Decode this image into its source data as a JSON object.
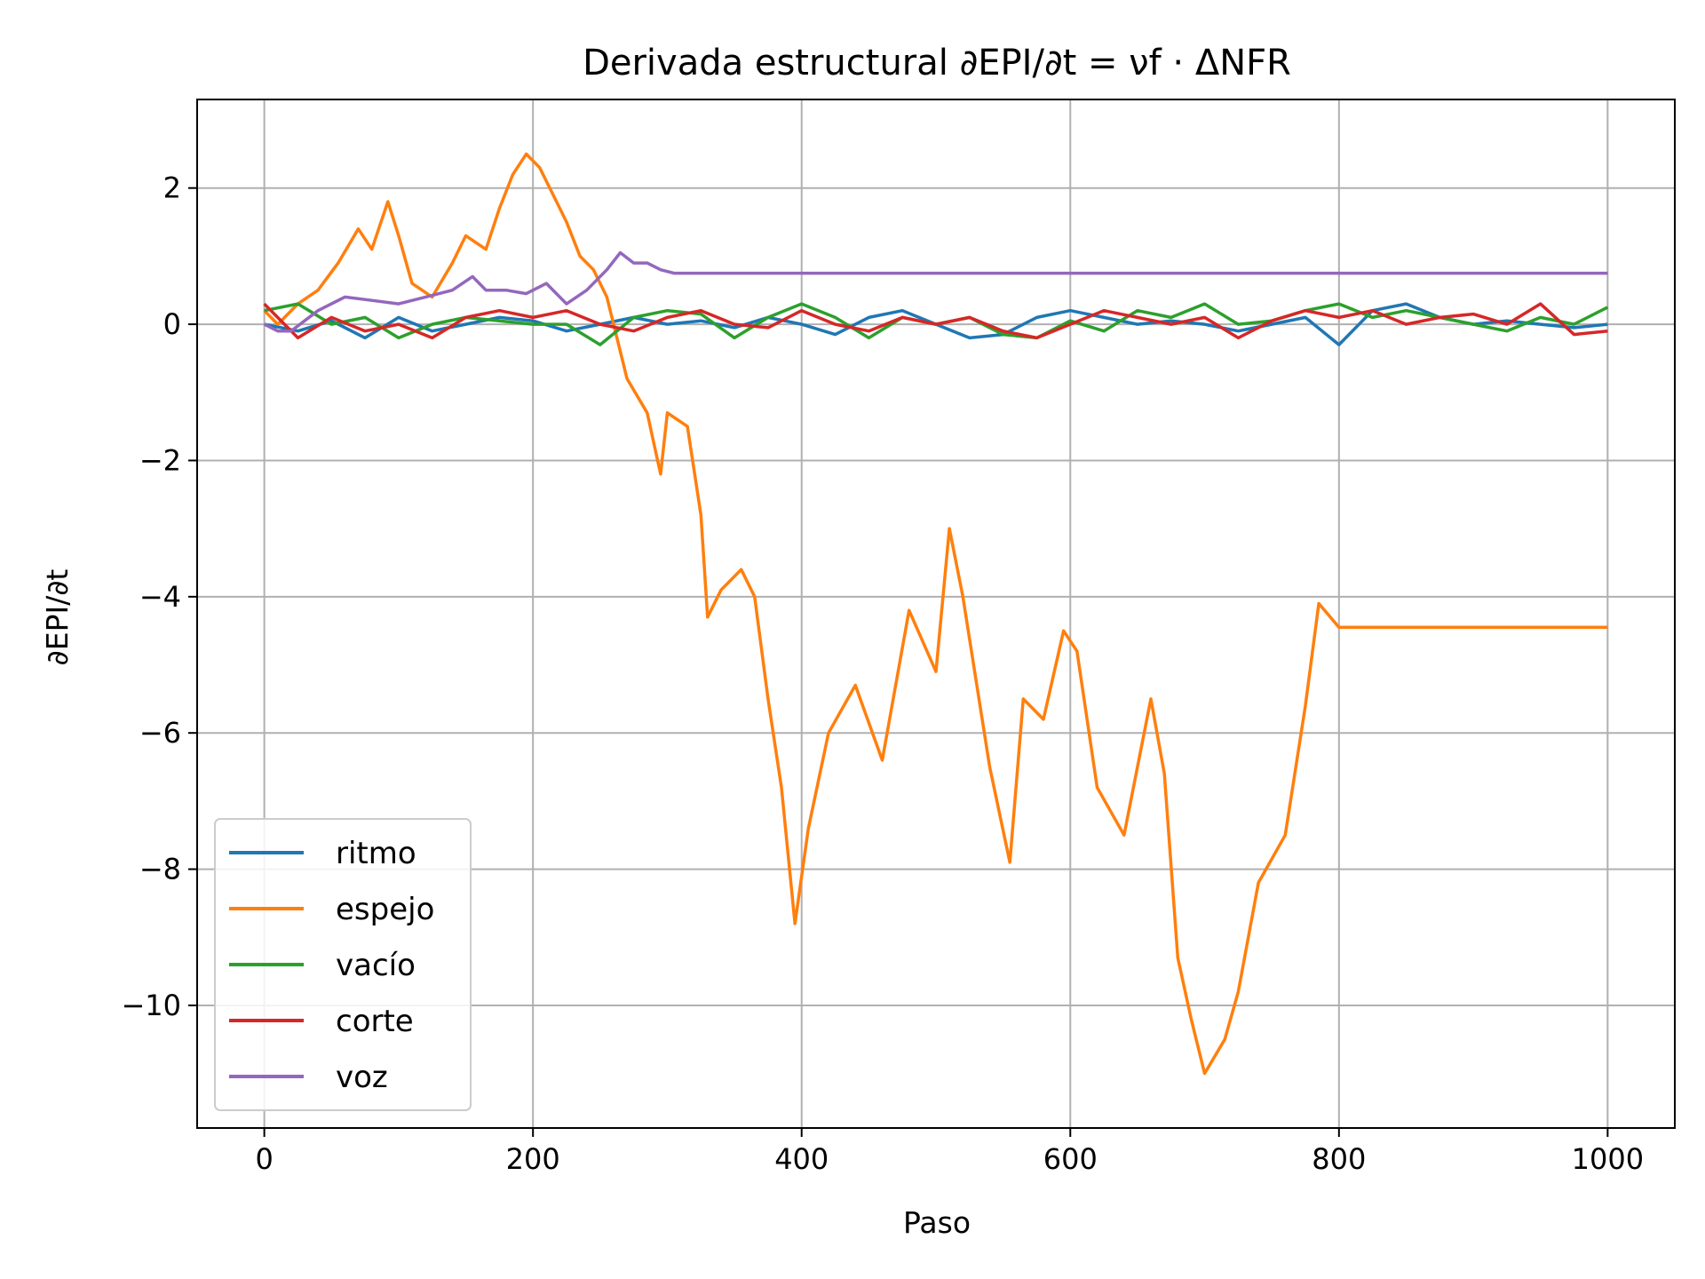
{
  "chart_data": {
    "type": "line",
    "title": "Derivada estructural ∂EPI/∂t = νf · ΔNFR",
    "xlabel": "Paso",
    "ylabel": "∂EPI/∂t",
    "xlim": [
      -50,
      1050
    ],
    "ylim": [
      -11.8,
      3.3
    ],
    "xticks": [
      0,
      200,
      400,
      600,
      800,
      1000
    ],
    "yticks": [
      2,
      0,
      -2,
      -4,
      -6,
      -8,
      -10
    ],
    "grid": true,
    "legend_position": "lower-left",
    "series": [
      {
        "name": "ritmo",
        "color": "#1f77b4",
        "x": [
          0,
          25,
          50,
          75,
          100,
          125,
          150,
          175,
          200,
          225,
          250,
          275,
          300,
          325,
          350,
          375,
          400,
          425,
          450,
          475,
          500,
          525,
          550,
          575,
          600,
          625,
          650,
          675,
          700,
          725,
          750,
          775,
          800,
          825,
          850,
          875,
          900,
          925,
          950,
          975,
          1000
        ],
        "y": [
          0.0,
          -0.1,
          0.05,
          -0.2,
          0.1,
          -0.1,
          0.0,
          0.1,
          0.05,
          -0.1,
          0.0,
          0.1,
          0.0,
          0.05,
          -0.05,
          0.1,
          0.0,
          -0.15,
          0.1,
          0.2,
          0.0,
          -0.2,
          -0.15,
          0.1,
          0.2,
          0.1,
          0.0,
          0.05,
          0.0,
          -0.1,
          0.0,
          0.1,
          -0.3,
          0.2,
          0.3,
          0.1,
          0.0,
          0.05,
          0.0,
          -0.05,
          0.0
        ]
      },
      {
        "name": "espejo",
        "color": "#ff7f0e",
        "x": [
          0,
          10,
          25,
          40,
          55,
          70,
          80,
          92,
          100,
          110,
          125,
          140,
          150,
          165,
          175,
          185,
          195,
          205,
          215,
          225,
          235,
          245,
          255,
          270,
          285,
          295,
          300,
          315,
          325,
          330,
          340,
          355,
          365,
          375,
          385,
          395,
          405,
          420,
          440,
          460,
          480,
          500,
          510,
          520,
          540,
          555,
          565,
          580,
          595,
          605,
          620,
          640,
          660,
          670,
          680,
          690,
          700,
          715,
          725,
          740,
          760,
          775,
          785,
          800,
          900,
          1000
        ],
        "y": [
          0.2,
          0.0,
          0.3,
          0.5,
          0.9,
          1.4,
          1.1,
          1.8,
          1.3,
          0.6,
          0.4,
          0.9,
          1.3,
          1.1,
          1.7,
          2.2,
          2.5,
          2.3,
          1.9,
          1.5,
          1.0,
          0.8,
          0.4,
          -0.8,
          -1.3,
          -2.2,
          -1.3,
          -1.5,
          -2.8,
          -4.3,
          -3.9,
          -3.6,
          -4.0,
          -5.5,
          -6.8,
          -8.8,
          -7.4,
          -6.0,
          -5.3,
          -6.4,
          -4.2,
          -5.1,
          -3.0,
          -4.0,
          -6.5,
          -7.9,
          -5.5,
          -5.8,
          -4.5,
          -4.8,
          -6.8,
          -7.5,
          -5.5,
          -6.6,
          -9.3,
          -10.2,
          -11.0,
          -10.5,
          -9.8,
          -8.2,
          -7.5,
          -5.6,
          -4.1,
          -4.45,
          -4.45,
          -4.45
        ]
      },
      {
        "name": "vacío",
        "color": "#2ca02c",
        "x": [
          0,
          25,
          50,
          75,
          100,
          125,
          150,
          175,
          200,
          225,
          250,
          275,
          300,
          325,
          350,
          375,
          400,
          425,
          450,
          475,
          500,
          525,
          550,
          575,
          600,
          625,
          650,
          675,
          700,
          725,
          750,
          775,
          800,
          825,
          850,
          875,
          900,
          925,
          950,
          975,
          1000
        ],
        "y": [
          0.2,
          0.3,
          0.0,
          0.1,
          -0.2,
          0.0,
          0.1,
          0.05,
          0.0,
          0.0,
          -0.3,
          0.1,
          0.2,
          0.15,
          -0.2,
          0.1,
          0.3,
          0.1,
          -0.2,
          0.1,
          0.0,
          0.1,
          -0.15,
          -0.2,
          0.05,
          -0.1,
          0.2,
          0.1,
          0.3,
          0.0,
          0.05,
          0.2,
          0.3,
          0.1,
          0.2,
          0.1,
          0.0,
          -0.1,
          0.1,
          0.0,
          0.25
        ]
      },
      {
        "name": "corte",
        "color": "#d62728",
        "x": [
          0,
          25,
          50,
          75,
          100,
          125,
          150,
          175,
          200,
          225,
          250,
          275,
          300,
          325,
          350,
          375,
          400,
          425,
          450,
          475,
          500,
          525,
          550,
          575,
          600,
          625,
          650,
          675,
          700,
          725,
          750,
          775,
          800,
          825,
          850,
          875,
          900,
          925,
          950,
          975,
          1000
        ],
        "y": [
          0.3,
          -0.2,
          0.1,
          -0.1,
          0.0,
          -0.2,
          0.1,
          0.2,
          0.1,
          0.2,
          0.0,
          -0.1,
          0.1,
          0.2,
          0.0,
          -0.05,
          0.2,
          0.0,
          -0.1,
          0.1,
          0.0,
          0.1,
          -0.1,
          -0.2,
          0.0,
          0.2,
          0.1,
          0.0,
          0.1,
          -0.2,
          0.05,
          0.2,
          0.1,
          0.2,
          0.0,
          0.1,
          0.15,
          0.0,
          0.3,
          -0.15,
          -0.1
        ]
      },
      {
        "name": "voz",
        "color": "#9467bd",
        "x": [
          0,
          10,
          20,
          40,
          60,
          80,
          100,
          120,
          140,
          155,
          165,
          180,
          195,
          210,
          225,
          240,
          255,
          265,
          275,
          285,
          295,
          305,
          400,
          500,
          600,
          700,
          800,
          900,
          1000
        ],
        "y": [
          0.0,
          -0.1,
          -0.1,
          0.2,
          0.4,
          0.35,
          0.3,
          0.4,
          0.5,
          0.7,
          0.5,
          0.5,
          0.45,
          0.6,
          0.3,
          0.5,
          0.8,
          1.05,
          0.9,
          0.9,
          0.8,
          0.75,
          0.75,
          0.75,
          0.75,
          0.75,
          0.75,
          0.75,
          0.75
        ]
      }
    ]
  }
}
